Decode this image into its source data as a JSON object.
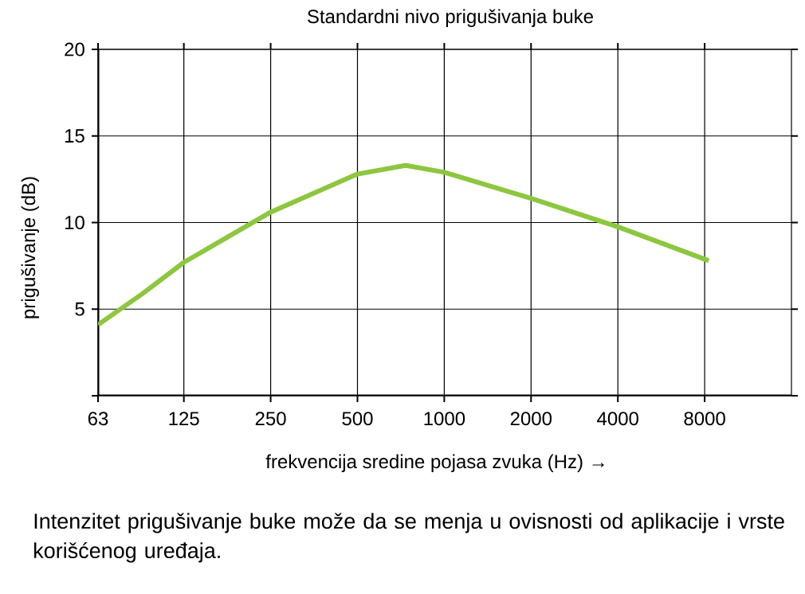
{
  "chart_data": {
    "type": "line",
    "title": "Standardni nivo prigušivanja buke",
    "xlabel": "frekvencija sredine pojasa zvuka (Hz) →",
    "ylabel": "prigušivanje (dB)",
    "annotations": [
      "Intenzitet prigušivanje buke može da se menja u ovisnosti od aplikacije i vrste korišćenog uređaja."
    ],
    "x": [
      63,
      90,
      125,
      250,
      500,
      735,
      1000,
      2000,
      4000,
      8260
    ],
    "series": [
      {
        "color": "#8dc63f",
        "values": [
          4.1,
          5.9,
          7.7,
          10.6,
          12.8,
          13.3,
          12.9,
          11.4,
          9.75,
          7.8
        ]
      }
    ],
    "log": "x",
    "xlim": [
      63,
      16000
    ],
    "ylim": [
      0,
      20
    ],
    "xticks": [
      63,
      125,
      250,
      500,
      1000,
      2000,
      4000,
      8000
    ],
    "yticks": [
      {
        "value": 0,
        "label": null
      },
      5,
      10,
      15,
      20
    ],
    "grid": true,
    "marker": "none",
    "line_style": "solid"
  }
}
